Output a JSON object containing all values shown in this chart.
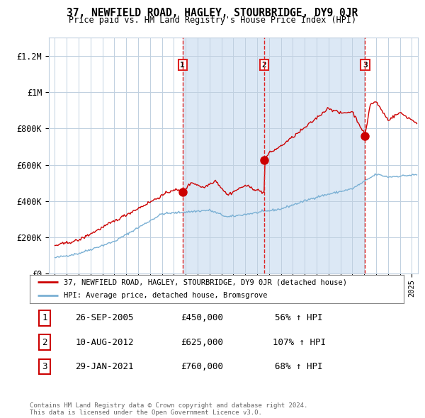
{
  "title": "37, NEWFIELD ROAD, HAGLEY, STOURBRIDGE, DY9 0JR",
  "subtitle": "Price paid vs. HM Land Registry's House Price Index (HPI)",
  "legend_label_red": "37, NEWFIELD ROAD, HAGLEY, STOURBRIDGE, DY9 0JR (detached house)",
  "legend_label_blue": "HPI: Average price, detached house, Bromsgrove",
  "transactions": [
    {
      "label": "1",
      "date": "26-SEP-2005",
      "price": 450000,
      "pct": "56%",
      "dir": "↑",
      "x_year": 2005.73
    },
    {
      "label": "2",
      "date": "10-AUG-2012",
      "price": 625000,
      "pct": "107%",
      "dir": "↑",
      "x_year": 2012.61
    },
    {
      "label": "3",
      "date": "29-JAN-2021",
      "price": 760000,
      "pct": "68%",
      "dir": "↑",
      "x_year": 2021.07
    }
  ],
  "copyright_text": "Contains HM Land Registry data © Crown copyright and database right 2024.\nThis data is licensed under the Open Government Licence v3.0.",
  "ylim": [
    0,
    1300000
  ],
  "yticks": [
    0,
    200000,
    400000,
    600000,
    800000,
    1000000,
    1200000
  ],
  "ytick_labels": [
    "£0",
    "£200K",
    "£400K",
    "£600K",
    "£800K",
    "£1M",
    "£1.2M"
  ],
  "bg_color": "#dce8f5",
  "plot_bg": "#ffffff",
  "red_color": "#cc0000",
  "blue_color": "#7ab0d4",
  "vline_color": "#dd2222",
  "grid_color": "#c0d0e0",
  "shade_color": "#dce8f5",
  "xmin": 1994.5,
  "xmax": 2025.5
}
